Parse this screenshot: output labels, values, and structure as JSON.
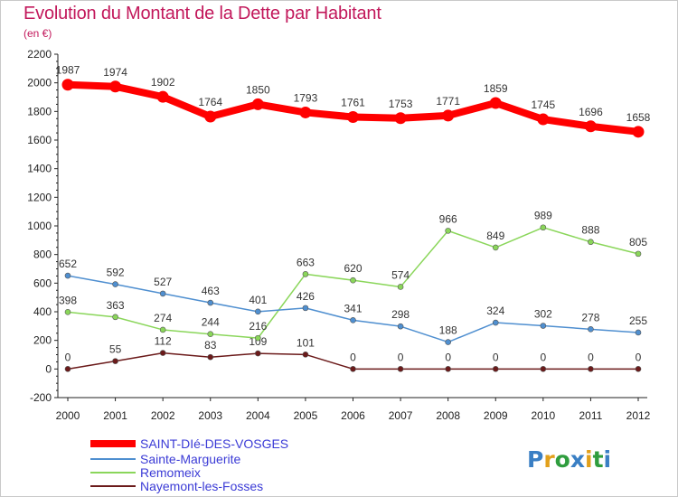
{
  "chart_data": {
    "type": "line",
    "title": "Evolution du Montant de la Dette par Habitant",
    "subtitle": "(en €)",
    "x": [
      "2000",
      "2001",
      "2002",
      "2003",
      "2004",
      "2005",
      "2006",
      "2007",
      "2008",
      "2009",
      "2010",
      "2011",
      "2012"
    ],
    "ylim": [
      -200,
      2200
    ],
    "yticks": [
      -200,
      0,
      200,
      400,
      600,
      800,
      1000,
      1200,
      1400,
      1600,
      1800,
      2000,
      2200
    ],
    "grid": false,
    "legend_position": "bottom-left",
    "series": [
      {
        "name": "SAINT-DIé-DES-VOSGES",
        "color": "#ff0000",
        "values": [
          1987,
          1974,
          1902,
          1764,
          1850,
          1793,
          1761,
          1753,
          1771,
          1859,
          1745,
          1696,
          1658
        ]
      },
      {
        "name": "Sainte-Marguerite",
        "color": "#4f8fd0",
        "values": [
          652,
          592,
          527,
          463,
          401,
          426,
          341,
          298,
          188,
          324,
          302,
          278,
          255
        ]
      },
      {
        "name": "Remomeix",
        "color": "#8ad65a",
        "values": [
          398,
          363,
          274,
          244,
          216,
          663,
          620,
          574,
          966,
          849,
          989,
          888,
          805
        ]
      },
      {
        "name": "Nayemont-les-Fosses",
        "color": "#6b1a1a",
        "values": [
          0,
          55,
          112,
          83,
          109,
          101,
          0,
          0,
          0,
          0,
          0,
          0,
          0
        ]
      }
    ]
  },
  "branding": {
    "logo_text": "Proxiti"
  }
}
